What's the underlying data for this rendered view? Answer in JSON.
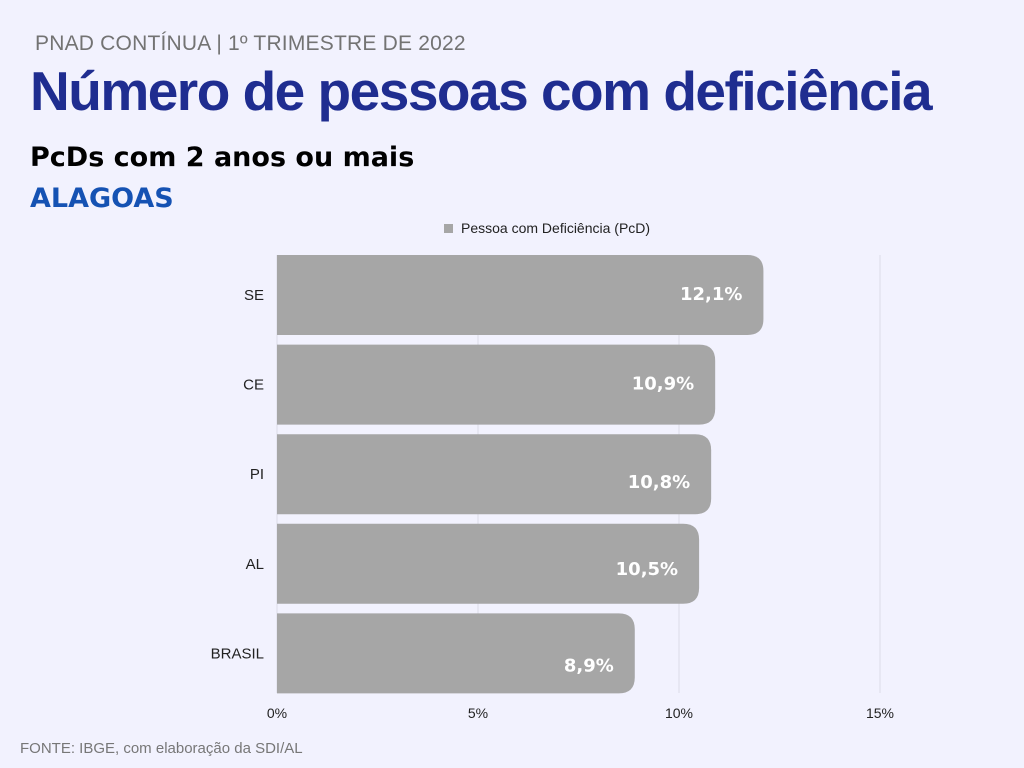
{
  "header": {
    "kicker": "PNAD CONTÍNUA | 1º TRIMESTRE DE 2022",
    "title": "Número de pessoas com deficiência",
    "subtitle": "PcDs com 2 anos ou mais",
    "region": "ALAGOAS"
  },
  "footer": {
    "source": "FONTE: IBGE, com elaboração da SDI/AL"
  },
  "chart_data": {
    "type": "bar",
    "orientation": "horizontal",
    "categories": [
      "SE",
      "CE",
      "PI",
      "AL",
      "BRASIL"
    ],
    "series": [
      {
        "name": "Pessoa com Deficiência (PcD)",
        "values": [
          12.1,
          10.9,
          10.8,
          10.5,
          8.9
        ],
        "color": "#a6a6a6"
      }
    ],
    "data_labels": [
      "12,1%",
      "10,9%",
      "10,8%",
      "10,5%",
      "8,9%"
    ],
    "xlim": [
      0,
      15
    ],
    "x_ticks": [
      0,
      5,
      10,
      15
    ],
    "x_tick_labels": [
      "0%",
      "5%",
      "10%",
      "15%"
    ],
    "legend_position": "top",
    "grid": true
  }
}
